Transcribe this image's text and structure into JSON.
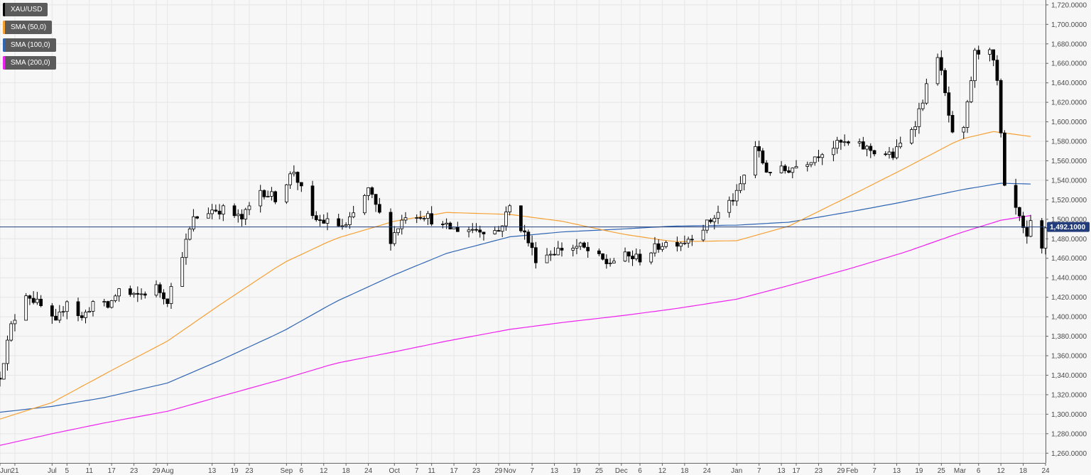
{
  "chart_data": {
    "type": "candlestick",
    "symbol": "XAU/USD",
    "legend": [
      {
        "label": "XAU/USD",
        "color": "#000000"
      },
      {
        "label": "SMA (50,0)",
        "color": "#f5a033"
      },
      {
        "label": "SMA (100,0)",
        "color": "#2f65b3"
      },
      {
        "label": "SMA (200,0)",
        "color": "#ee22ee"
      }
    ],
    "ylim": [
      1250,
      1725
    ],
    "y_ticks": [
      1260,
      1280,
      1300,
      1320,
      1340,
      1360,
      1380,
      1400,
      1420,
      1440,
      1460,
      1480,
      1500,
      1520,
      1540,
      1560,
      1580,
      1600,
      1620,
      1640,
      1660,
      1680,
      1700,
      1720
    ],
    "y_tick_labels": [
      "1,260.0000",
      "1,280.0000",
      "1,300.0000",
      "1,320.0000",
      "1,340.0000",
      "1,360.0000",
      "1,380.0000",
      "1,400.0000",
      "1,420.0000",
      "1,440.0000",
      "1,460.0000",
      "1,480.0000",
      "1,500.0000",
      "1,520.0000",
      "1,540.0000",
      "1,560.0000",
      "1,580.0000",
      "1,600.0000",
      "1,620.0000",
      "1,640.0000",
      "1,660.0000",
      "1,680.0000",
      "1,700.0000",
      "1,720.0000"
    ],
    "x_start": "2019-06-17",
    "x_end": "2020-03-24",
    "x_tick_dates": [
      "2019-06-17",
      "2019-06-21",
      "2019-07-01",
      "2019-07-05",
      "2019-07-11",
      "2019-07-17",
      "2019-07-23",
      "2019-07-29",
      "2019-08-01",
      "2019-08-13",
      "2019-08-19",
      "2019-08-23",
      "2019-09-02",
      "2019-09-06",
      "2019-09-12",
      "2019-09-18",
      "2019-09-24",
      "2019-10-01",
      "2019-10-07",
      "2019-10-11",
      "2019-10-17",
      "2019-10-23",
      "2019-10-29",
      "2019-11-01",
      "2019-11-07",
      "2019-11-13",
      "2019-11-19",
      "2019-11-25",
      "2019-12-01",
      "2019-12-06",
      "2019-12-12",
      "2019-12-18",
      "2019-12-24",
      "2020-01-01",
      "2020-01-07",
      "2020-01-13",
      "2020-01-17",
      "2020-01-23",
      "2020-01-29",
      "2020-02-01",
      "2020-02-07",
      "2020-02-13",
      "2020-02-19",
      "2020-02-25",
      "2020-03-01",
      "2020-03-06",
      "2020-03-12",
      "2020-03-18",
      "2020-03-24"
    ],
    "x_tick_labels": [
      "Jun",
      "21",
      "Jul",
      "5",
      "11",
      "17",
      "23",
      "29",
      "Aug",
      "13",
      "19",
      "23",
      "Sep",
      "6",
      "12",
      "18",
      "24",
      "Oct",
      "7",
      "11",
      "17",
      "23",
      "29",
      "Nov",
      "7",
      "13",
      "19",
      "25",
      "Dec",
      "6",
      "12",
      "18",
      "24",
      "Jan",
      "7",
      "13",
      "17",
      "23",
      "29",
      "Feb",
      "7",
      "13",
      "19",
      "25",
      "Mar",
      "6",
      "12",
      "18",
      "24"
    ],
    "last_price": 1492.1,
    "last_price_label": "1,492.1000",
    "last_price_color": "#233d7a",
    "candle_keypoints": [
      [
        "2019-06-17",
        1340
      ],
      [
        "2019-06-20",
        1390
      ],
      [
        "2019-06-24",
        1425
      ],
      [
        "2019-06-28",
        1410
      ],
      [
        "2019-07-02",
        1392
      ],
      [
        "2019-07-05",
        1418
      ],
      [
        "2019-07-09",
        1398
      ],
      [
        "2019-07-12",
        1415
      ],
      [
        "2019-07-16",
        1410
      ],
      [
        "2019-07-19",
        1428
      ],
      [
        "2019-07-23",
        1420
      ],
      [
        "2019-07-29",
        1430
      ],
      [
        "2019-08-01",
        1418
      ],
      [
        "2019-08-05",
        1465
      ],
      [
        "2019-08-08",
        1500
      ],
      [
        "2019-08-13",
        1510
      ],
      [
        "2019-08-16",
        1510
      ],
      [
        "2019-08-21",
        1500
      ],
      [
        "2019-08-26",
        1530
      ],
      [
        "2019-08-30",
        1522
      ],
      [
        "2019-09-04",
        1550
      ],
      [
        "2019-09-09",
        1500
      ],
      [
        "2019-09-13",
        1497
      ],
      [
        "2019-09-18",
        1492
      ],
      [
        "2019-09-24",
        1530
      ],
      [
        "2019-09-30",
        1480
      ],
      [
        "2019-10-04",
        1505
      ],
      [
        "2019-10-09",
        1505
      ],
      [
        "2019-10-14",
        1492
      ],
      [
        "2019-10-18",
        1490
      ],
      [
        "2019-10-23",
        1490
      ],
      [
        "2019-10-29",
        1488
      ],
      [
        "2019-11-01",
        1513
      ],
      [
        "2019-11-05",
        1485
      ],
      [
        "2019-11-08",
        1460
      ],
      [
        "2019-11-15",
        1470
      ],
      [
        "2019-11-20",
        1472
      ],
      [
        "2019-11-27",
        1455
      ],
      [
        "2019-12-02",
        1462
      ],
      [
        "2019-12-06",
        1460
      ],
      [
        "2019-12-12",
        1475
      ],
      [
        "2019-12-18",
        1478
      ],
      [
        "2019-12-24",
        1495
      ],
      [
        "2020-01-01",
        1525
      ],
      [
        "2020-01-06",
        1575
      ],
      [
        "2020-01-09",
        1550
      ],
      [
        "2020-01-14",
        1550
      ],
      [
        "2020-01-20",
        1560
      ],
      [
        "2020-01-24",
        1570
      ],
      [
        "2020-01-29",
        1578
      ],
      [
        "2020-02-03",
        1575
      ],
      [
        "2020-02-07",
        1570
      ],
      [
        "2020-02-12",
        1565
      ],
      [
        "2020-02-18",
        1600
      ],
      [
        "2020-02-24",
        1670
      ],
      [
        "2020-02-28",
        1585
      ],
      [
        "2020-03-02",
        1590
      ],
      [
        "2020-03-05",
        1670
      ],
      [
        "2020-03-09",
        1678
      ],
      [
        "2020-03-11",
        1640
      ],
      [
        "2020-03-13",
        1530
      ],
      [
        "2020-03-16",
        1510
      ],
      [
        "2020-03-19",
        1478
      ],
      [
        "2020-03-20",
        1495
      ],
      [
        "2020-03-23",
        1468
      ],
      [
        "2020-03-24",
        1492
      ]
    ],
    "sma50_keypoints": [
      [
        "2019-06-17",
        1295
      ],
      [
        "2019-07-01",
        1312
      ],
      [
        "2019-07-17",
        1345
      ],
      [
        "2019-08-01",
        1375
      ],
      [
        "2019-08-15",
        1412
      ],
      [
        "2019-09-01",
        1455
      ],
      [
        "2019-09-15",
        1480
      ],
      [
        "2019-10-01",
        1498
      ],
      [
        "2019-10-15",
        1507
      ],
      [
        "2019-11-01",
        1505
      ],
      [
        "2019-11-15",
        1498
      ],
      [
        "2019-12-01",
        1485
      ],
      [
        "2019-12-15",
        1477
      ],
      [
        "2020-01-01",
        1478
      ],
      [
        "2020-01-15",
        1493
      ],
      [
        "2020-02-01",
        1525
      ],
      [
        "2020-02-15",
        1552
      ],
      [
        "2020-03-01",
        1582
      ],
      [
        "2020-03-10",
        1590
      ],
      [
        "2020-03-22",
        1584
      ]
    ],
    "sma100_keypoints": [
      [
        "2019-06-17",
        1302
      ],
      [
        "2019-07-01",
        1308
      ],
      [
        "2019-07-15",
        1317
      ],
      [
        "2019-08-01",
        1332
      ],
      [
        "2019-08-15",
        1355
      ],
      [
        "2019-09-01",
        1385
      ],
      [
        "2019-09-15",
        1415
      ],
      [
        "2019-10-01",
        1443
      ],
      [
        "2019-10-15",
        1465
      ],
      [
        "2019-11-01",
        1482
      ],
      [
        "2019-11-15",
        1487
      ],
      [
        "2019-12-01",
        1490
      ],
      [
        "2019-12-15",
        1493
      ],
      [
        "2020-01-01",
        1494
      ],
      [
        "2020-01-15",
        1497
      ],
      [
        "2020-02-01",
        1508
      ],
      [
        "2020-02-15",
        1518
      ],
      [
        "2020-03-01",
        1530
      ],
      [
        "2020-03-12",
        1537
      ],
      [
        "2020-03-22",
        1536
      ]
    ],
    "sma200_keypoints": [
      [
        "2019-06-17",
        1268
      ],
      [
        "2019-07-01",
        1280
      ],
      [
        "2019-07-15",
        1291
      ],
      [
        "2019-08-01",
        1303
      ],
      [
        "2019-08-15",
        1318
      ],
      [
        "2019-09-01",
        1336
      ],
      [
        "2019-09-15",
        1352
      ],
      [
        "2019-10-01",
        1364
      ],
      [
        "2019-10-15",
        1375
      ],
      [
        "2019-11-01",
        1387
      ],
      [
        "2019-11-15",
        1394
      ],
      [
        "2019-12-01",
        1401
      ],
      [
        "2019-12-15",
        1408
      ],
      [
        "2020-01-01",
        1418
      ],
      [
        "2020-01-15",
        1432
      ],
      [
        "2020-02-01",
        1450
      ],
      [
        "2020-02-15",
        1466
      ],
      [
        "2020-03-01",
        1486
      ],
      [
        "2020-03-12",
        1499
      ],
      [
        "2020-03-22",
        1505
      ]
    ]
  }
}
